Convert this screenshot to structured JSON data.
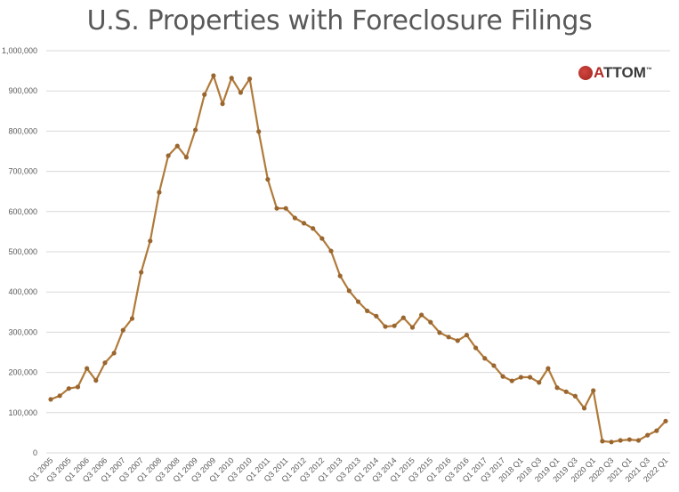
{
  "chart_data": {
    "type": "line",
    "title": "U.S. Properties with Foreclosure Filings",
    "xlabel": "",
    "ylabel": "",
    "ylim": [
      0,
      1000000
    ],
    "yticks": [
      0,
      100000,
      200000,
      300000,
      400000,
      500000,
      600000,
      700000,
      800000,
      900000,
      1000000
    ],
    "ytick_labels": [
      "0",
      "100,000",
      "200,000",
      "300,000",
      "400,000",
      "500,000",
      "600,000",
      "700,000",
      "800,000",
      "900,000",
      "1,000,000"
    ],
    "grid": true,
    "legend": null,
    "x": [
      "Q1 2005",
      "Q2 2005",
      "Q3 2005",
      "Q4 2005",
      "Q1 2006",
      "Q2 2006",
      "Q3 2006",
      "Q4 2006",
      "Q1 2007",
      "Q2 2007",
      "Q3 2007",
      "Q4 2007",
      "Q1 2008",
      "Q2 2008",
      "Q3 2008",
      "Q4 2008",
      "Q1 2009",
      "Q2 2009",
      "Q3 2009",
      "Q4 2009",
      "Q1 2010",
      "Q2 2010",
      "Q3 2010",
      "Q4 2010",
      "Q1 2011",
      "Q2 2011",
      "Q3 2011",
      "Q4 2011",
      "Q1 2012",
      "Q2 2012",
      "Q3 2012",
      "Q4 2012",
      "Q1 2013",
      "Q2 2013",
      "Q3 2013",
      "Q4 2013",
      "Q1 2014",
      "Q2 2014",
      "Q3 2014",
      "Q4 2014",
      "Q1 2015",
      "Q2 2015",
      "Q3 2015",
      "Q4 2015",
      "Q1 2016",
      "Q2 2016",
      "Q3 2016",
      "Q4 2016",
      "Q1 2017",
      "Q2 2017",
      "Q3 2017",
      "Q4 2017",
      "2018 Q1",
      "2018 Q2",
      "2018 Q3",
      "2018 Q4",
      "2019 Q1",
      "2019 Q2",
      "2019 Q3",
      "2019 Q4",
      "2020 Q1",
      "2020 Q2",
      "2020 Q3",
      "2020 Q4",
      "2021 Q1",
      "2021 Q2",
      "2021 Q3",
      "2021 Q4",
      "2022 Q1"
    ],
    "x_tick_labels_shown": [
      "Q1 2005",
      "Q3 2005",
      "Q1 2006",
      "Q3 2006",
      "Q1 2007",
      "Q3 2007",
      "Q1 2008",
      "Q3 2008",
      "Q1 2009",
      "Q3 2009",
      "Q1 2010",
      "Q3 2010",
      "Q1 2011",
      "Q3 2011",
      "Q1 2012",
      "Q3 2012",
      "Q1 2013",
      "Q3 2013",
      "Q1 2014",
      "Q3 2014",
      "Q1 2015",
      "Q3 2015",
      "Q1 2016",
      "Q3 2016",
      "Q1 2017",
      "Q3 2017",
      "2018 Q1",
      "2018 Q3",
      "2019 Q1",
      "2019 Q3",
      "2020 Q1",
      "2020 Q3",
      "2021 Q1",
      "2021 Q3",
      "2022 Q1"
    ],
    "series": [
      {
        "name": "Properties with Foreclosure Filings",
        "color": "#B07A3A",
        "values": [
          133000,
          142000,
          160000,
          164000,
          210000,
          180000,
          224000,
          248000,
          305000,
          334000,
          449000,
          527000,
          648000,
          739000,
          763000,
          735000,
          803000,
          891000,
          938000,
          868000,
          932000,
          896000,
          930000,
          799000,
          680000,
          608000,
          608000,
          584000,
          571000,
          558000,
          533000,
          502000,
          440000,
          403000,
          376000,
          353000,
          340000,
          314000,
          316000,
          336000,
          312000,
          343000,
          325000,
          299000,
          288000,
          279000,
          293000,
          261000,
          235000,
          217000,
          190000,
          179000,
          188000,
          188000,
          175000,
          210000,
          162000,
          152000,
          141000,
          111000,
          155000,
          29000,
          27000,
          31000,
          33000,
          31000,
          44000,
          55000,
          79000
        ]
      }
    ]
  },
  "logo": {
    "prefix": "A",
    "rest": "TTOM",
    "tm": "™"
  }
}
